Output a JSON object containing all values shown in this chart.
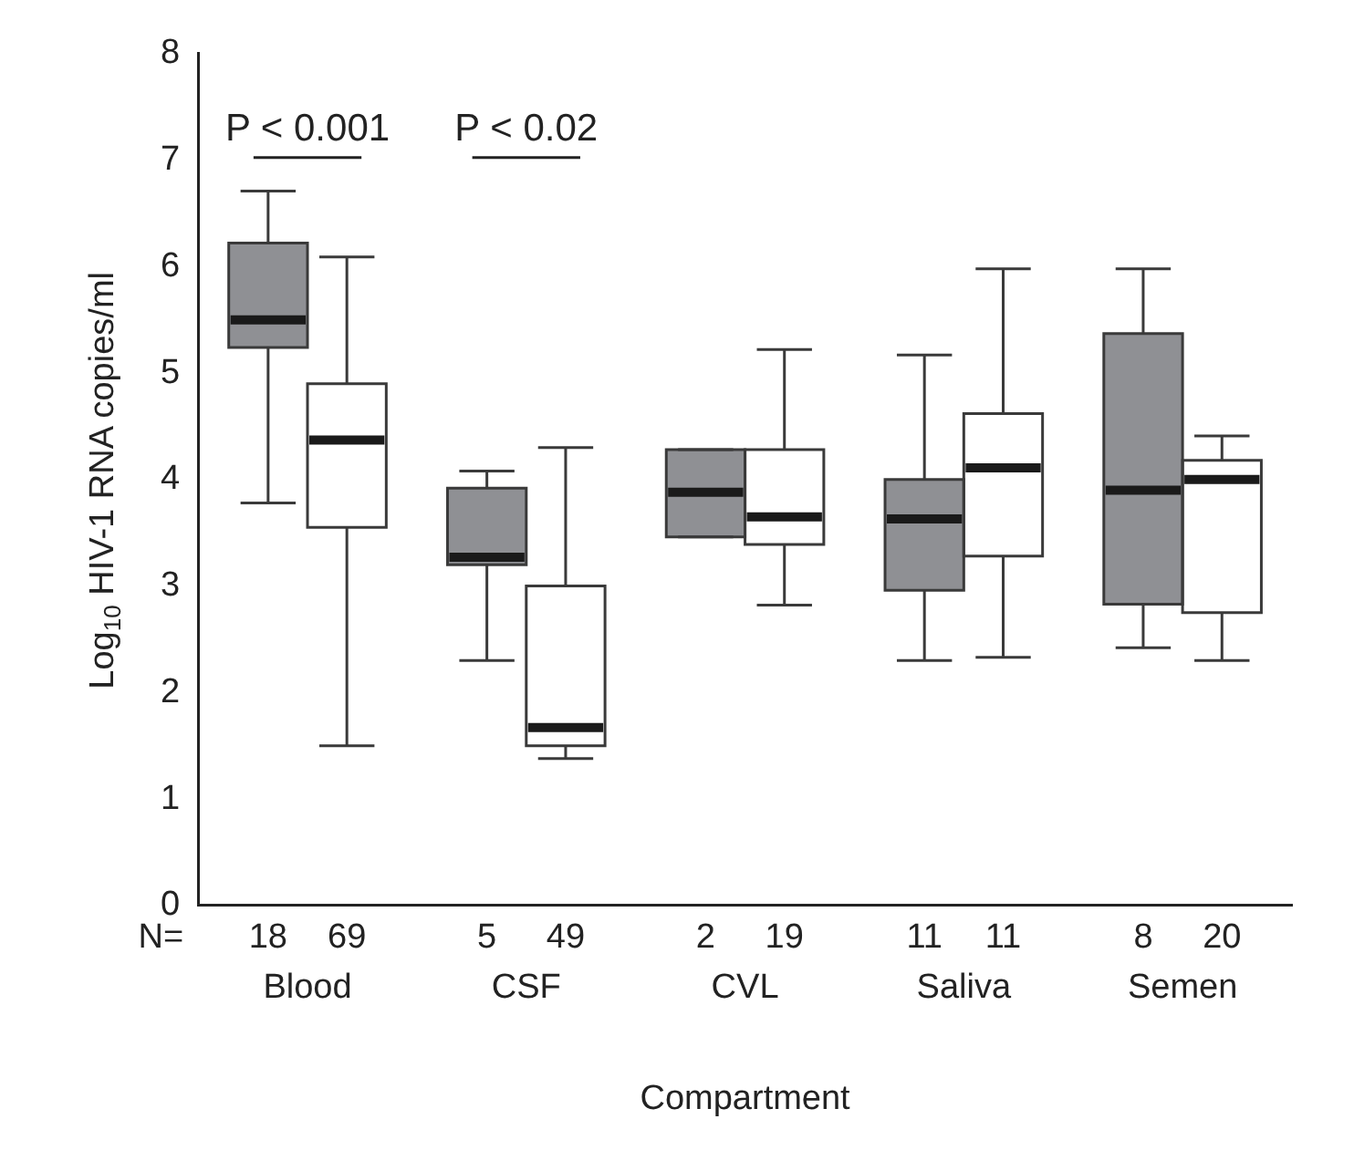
{
  "chart_data": {
    "type": "box",
    "xlabel": "Compartment",
    "ylabel": "Log$_{10}$ HIV-1 RNA copies/ml",
    "categories": [
      "Blood",
      "CSF",
      "CVL",
      "Saliva",
      "Semen"
    ],
    "ylim": [
      0,
      8
    ],
    "yticks": [
      0,
      1,
      2,
      3,
      4,
      5,
      6,
      7,
      8
    ],
    "grid": false,
    "legend": false,
    "series": [
      {
        "color": "#8f9094",
        "boxes": [
          {
            "low": 3.78,
            "q1": 5.24,
            "median": 5.5,
            "q3": 6.22,
            "high": 6.71
          },
          {
            "low": 2.3,
            "q1": 3.2,
            "median": 3.27,
            "q3": 3.92,
            "high": 4.08
          },
          {
            "low": 3.46,
            "q1": 3.46,
            "median": 3.88,
            "q3": 4.28,
            "high": 4.28
          },
          {
            "low": 2.3,
            "q1": 2.96,
            "median": 3.63,
            "q3": 4.0,
            "high": 5.17
          },
          {
            "low": 2.42,
            "q1": 2.83,
            "median": 3.9,
            "q3": 5.37,
            "high": 5.98
          }
        ]
      },
      {
        "color": "#ffffff",
        "boxes": [
          {
            "low": 1.5,
            "q1": 3.55,
            "median": 4.37,
            "q3": 4.9,
            "high": 6.09
          },
          {
            "low": 1.38,
            "q1": 1.5,
            "median": 1.67,
            "q3": 3.0,
            "high": 4.3
          },
          {
            "low": 2.82,
            "q1": 3.39,
            "median": 3.65,
            "q3": 4.28,
            "high": 5.22
          },
          {
            "low": 2.33,
            "q1": 3.28,
            "median": 4.11,
            "q3": 4.62,
            "high": 5.98
          },
          {
            "low": 2.3,
            "q1": 2.75,
            "median": 4.0,
            "q3": 4.18,
            "high": 4.41
          }
        ]
      }
    ],
    "annotations": [
      "P < 0.001",
      "P < 0.02",
      "N=",
      "18",
      "69",
      "5",
      "49",
      "2",
      "19",
      "11",
      "11",
      "8",
      "20"
    ]
  }
}
